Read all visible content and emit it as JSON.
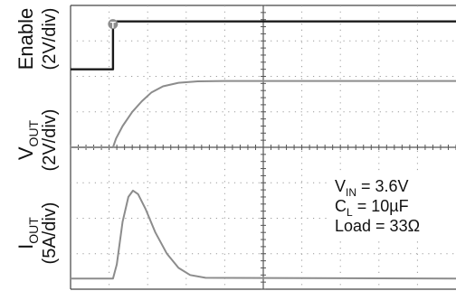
{
  "chart_data": {
    "type": "line",
    "grid": true,
    "x_divisions": 10,
    "y_divisions": 8,
    "channels": [
      {
        "name": "Enable",
        "scale": "(2V/div)",
        "color": "#1a1a1a",
        "marker": "T",
        "points": [
          [
            0,
            6.2
          ],
          [
            1.1,
            6.2
          ],
          [
            1.1,
            7.55
          ],
          [
            10,
            7.55
          ]
        ]
      },
      {
        "name": "V",
        "subscript": "OUT",
        "scale": "(2V/div)",
        "color": "#8c8c8c",
        "points": [
          [
            0,
            4.0
          ],
          [
            1.1,
            4.0
          ],
          [
            1.18,
            4.25
          ],
          [
            1.35,
            4.6
          ],
          [
            1.6,
            5.0
          ],
          [
            1.85,
            5.3
          ],
          [
            2.1,
            5.55
          ],
          [
            2.4,
            5.72
          ],
          [
            2.8,
            5.82
          ],
          [
            3.3,
            5.86
          ],
          [
            4.0,
            5.87
          ],
          [
            10,
            5.87
          ]
        ]
      },
      {
        "name": "I",
        "subscript": "OUT",
        "scale": "(5A/div)",
        "color": "#8c8c8c",
        "points": [
          [
            0,
            0.3
          ],
          [
            1.1,
            0.3
          ],
          [
            1.2,
            0.7
          ],
          [
            1.35,
            1.9
          ],
          [
            1.5,
            2.6
          ],
          [
            1.62,
            2.78
          ],
          [
            1.75,
            2.68
          ],
          [
            1.95,
            2.25
          ],
          [
            2.2,
            1.6
          ],
          [
            2.5,
            1.0
          ],
          [
            2.8,
            0.6
          ],
          [
            3.1,
            0.4
          ],
          [
            3.5,
            0.32
          ],
          [
            10,
            0.3
          ]
        ]
      }
    ],
    "annotations": [
      {
        "base": "V",
        "sub": "IN",
        "rest": " = 3.6V"
      },
      {
        "base": "C",
        "sub": "L",
        "rest": " = 10µF"
      },
      {
        "base": "Load = 33Ω",
        "sub": "",
        "rest": ""
      }
    ]
  }
}
